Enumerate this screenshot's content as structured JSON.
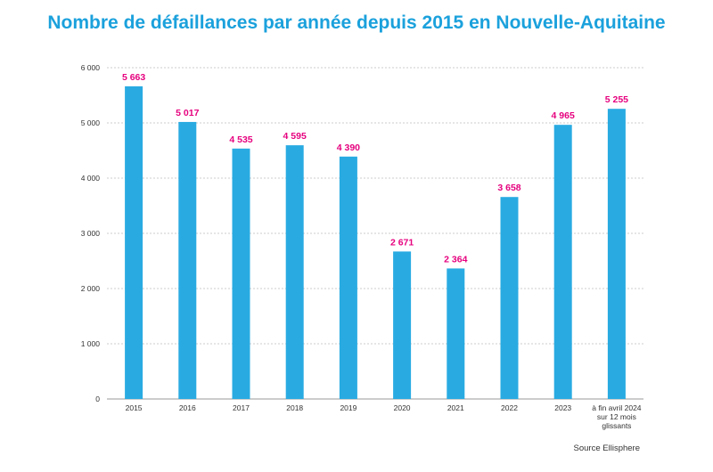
{
  "chart_data": {
    "type": "bar",
    "title": "Nombre de défaillances par année depuis 2015 en Nouvelle-Aquitaine",
    "categories": [
      "2015",
      "2016",
      "2017",
      "2018",
      "2019",
      "2020",
      "2021",
      "2022",
      "2023",
      [
        "à fin avril 2024",
        "sur 12 mois",
        "glissants"
      ]
    ],
    "values": [
      5663,
      5017,
      4535,
      4595,
      4390,
      2671,
      2364,
      3658,
      4965,
      5255
    ],
    "value_labels": [
      "5 663",
      "5 017",
      "4 535",
      "4 595",
      "4 390",
      "2 671",
      "2 364",
      "3 658",
      "4 965",
      "5 255"
    ],
    "yticks": [
      0,
      1000,
      2000,
      3000,
      4000,
      5000,
      6000
    ],
    "ytick_labels": [
      "0",
      "1 000",
      "2 000",
      "3 000",
      "4 000",
      "5 000",
      "6 000"
    ],
    "ylim": [
      0,
      6000
    ],
    "xlabel": "",
    "ylabel": "",
    "grid": true,
    "legend": "none",
    "source": "Source Ellisphere",
    "colors": {
      "bar": "#29abe2",
      "label": "#e6007e",
      "title": "#1ba1dc",
      "grid": "#cccccc",
      "axis": "#999999",
      "tick_text": "#333333"
    }
  }
}
